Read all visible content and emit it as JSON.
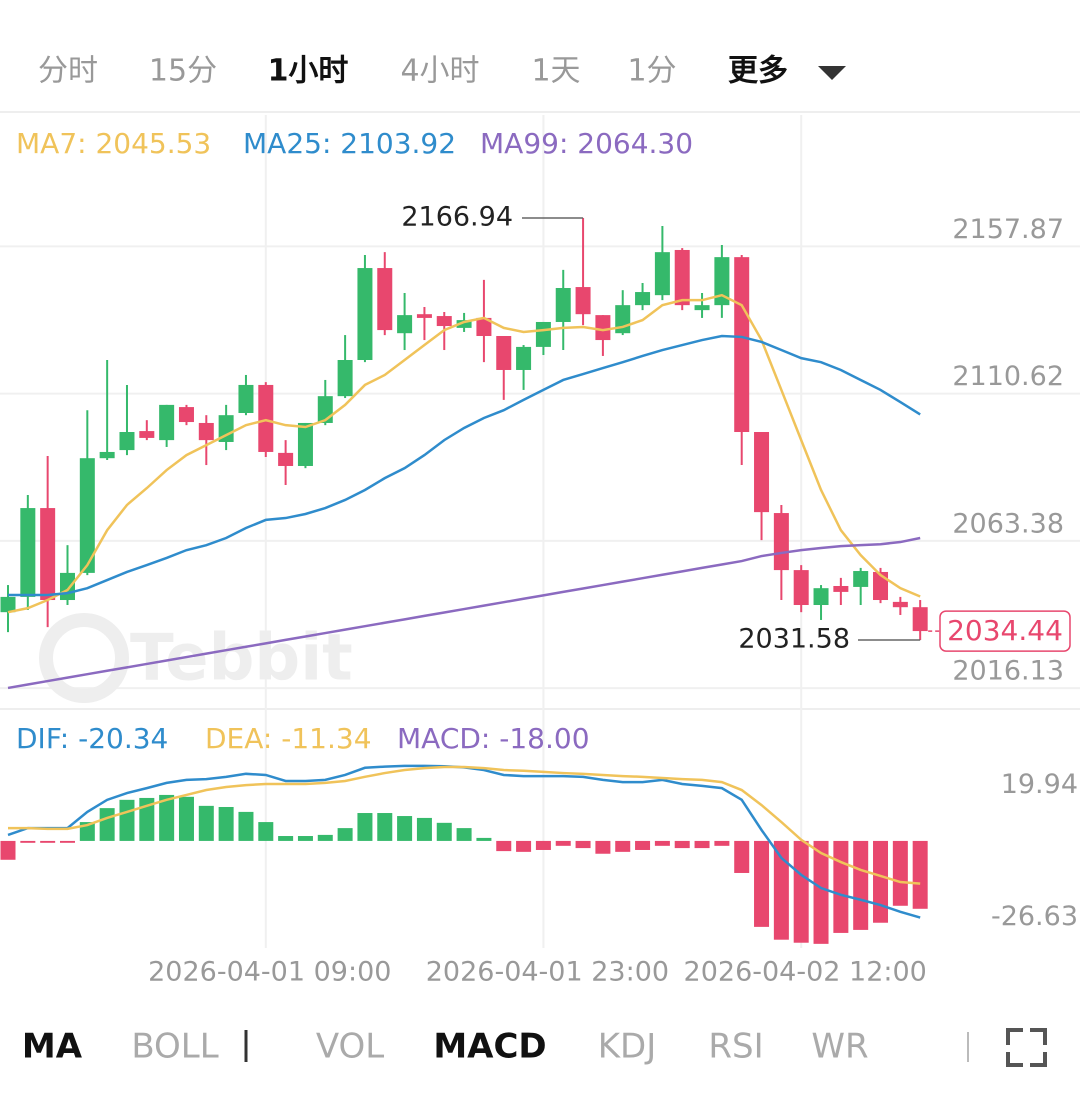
{
  "tabs": {
    "items": [
      "分时",
      "15分",
      "1小时",
      "4小时",
      "1天",
      "1分",
      "更多"
    ],
    "active": 2
  },
  "chart_data": [
    {
      "type": "candlestick",
      "watermark": "Tebbit",
      "categories": [
        null,
        null,
        null,
        null,
        null,
        null,
        null,
        null,
        null,
        null,
        null,
        null,
        null,
        "2026-04-01 09:00",
        null,
        null,
        null,
        null,
        null,
        null,
        null,
        null,
        null,
        null,
        null,
        null,
        null,
        "2026-04-01 23:00",
        null,
        null,
        null,
        null,
        null,
        null,
        null,
        null,
        null,
        null,
        null,
        null,
        "2026-04-02 12:00",
        null,
        null,
        null,
        null,
        null,
        null
      ],
      "open": [
        2040.5,
        2045.4,
        2073.9,
        2044.4,
        2053.1,
        2089.9,
        2092.5,
        2098.6,
        2095.7,
        2106.3,
        2101.2,
        2095.1,
        2104.4,
        2113.4,
        2091.6,
        2087.4,
        2101.2,
        2109.8,
        2121.4,
        2150.9,
        2130.0,
        2136.1,
        2135.5,
        2131.7,
        2134.9,
        2129.1,
        2118.2,
        2125.6,
        2133.6,
        2144.8,
        2135.8,
        2130.0,
        2139.0,
        2142.2,
        2156.7,
        2137.4,
        2139.0,
        2154.4,
        2098.3,
        2072.3,
        2054.0,
        2042.8,
        2048.9,
        2048.6,
        2053.4,
        2043.8,
        2042.1
      ],
      "high": [
        2049.2,
        2078.1,
        2090.6,
        2062.0,
        2105.3,
        2121.4,
        2113.4,
        2102.1,
        2107.0,
        2107.0,
        2103.7,
        2107.0,
        2116.6,
        2114.3,
        2095.7,
        2101.2,
        2115.0,
        2129.4,
        2155.1,
        2156.0,
        2142.9,
        2138.4,
        2136.8,
        2136.5,
        2147.1,
        2129.1,
        2126.2,
        2133.6,
        2150.3,
        2166.94,
        2135.8,
        2143.8,
        2146.1,
        2164.4,
        2157.3,
        2142.9,
        2158.3,
        2155.1,
        2098.3,
        2074.9,
        2055.6,
        2049.2,
        2051.5,
        2054.7,
        2054.7,
        2045.4,
        2044.4
      ],
      "low": [
        2034.1,
        2041.2,
        2035.7,
        2042.8,
        2052.4,
        2089.3,
        2090.9,
        2095.7,
        2093.5,
        2100.5,
        2087.7,
        2092.5,
        2103.7,
        2090.3,
        2081.3,
        2086.7,
        2100.5,
        2109.2,
        2120.7,
        2129.4,
        2124.6,
        2127.8,
        2124.6,
        2130.4,
        2120.7,
        2108.6,
        2111.8,
        2123.0,
        2124.6,
        2132.6,
        2122.7,
        2129.4,
        2137.4,
        2140.6,
        2137.4,
        2134.9,
        2134.9,
        2087.7,
        2063.6,
        2044.4,
        2040.5,
        2038.0,
        2042.8,
        2042.8,
        2043.4,
        2039.6,
        2031.58
      ],
      "close": [
        2045.4,
        2073.9,
        2044.4,
        2053.1,
        2089.9,
        2091.9,
        2098.3,
        2096.4,
        2107.0,
        2101.5,
        2095.7,
        2103.7,
        2113.4,
        2091.9,
        2087.4,
        2101.2,
        2109.8,
        2121.4,
        2150.9,
        2131.0,
        2135.8,
        2134.9,
        2132.3,
        2134.2,
        2129.1,
        2118.2,
        2125.6,
        2133.6,
        2144.5,
        2136.1,
        2127.8,
        2139.0,
        2143.2,
        2156.0,
        2139.0,
        2139.0,
        2154.4,
        2098.3,
        2072.6,
        2054.0,
        2042.8,
        2048.2,
        2047.0,
        2053.7,
        2044.4,
        2042.1,
        2034.44
      ],
      "up_color": "#35b96b",
      "down_color": "#e8476e",
      "series": [
        {
          "name": "MA7: 2045.53",
          "color": "#f0c35a",
          "values": [
            2040.5,
            2041.8,
            2044.4,
            2047.6,
            2055.6,
            2066.8,
            2074.9,
            2080.3,
            2086.1,
            2090.9,
            2094.1,
            2097.3,
            2100.5,
            2102.1,
            2100.5,
            2099.9,
            2102.1,
            2107.0,
            2113.4,
            2116.6,
            2121.4,
            2126.2,
            2131.0,
            2133.6,
            2134.9,
            2131.7,
            2130.4,
            2131.0,
            2131.7,
            2132.0,
            2131.0,
            2132.0,
            2134.2,
            2139.0,
            2140.6,
            2140.6,
            2142.2,
            2139.0,
            2127.8,
            2111.8,
            2095.7,
            2079.7,
            2066.8,
            2058.8,
            2052.4,
            2048.2,
            2045.53
          ]
        },
        {
          "name": "MA25: 2103.92",
          "color": "#2f8ccc",
          "values": [
            2046.0,
            2046.0,
            2046.0,
            2046.6,
            2048.2,
            2050.8,
            2053.4,
            2055.6,
            2057.9,
            2060.4,
            2062.0,
            2064.3,
            2067.5,
            2070.1,
            2070.7,
            2072.0,
            2073.9,
            2076.5,
            2079.7,
            2083.5,
            2086.7,
            2090.9,
            2095.7,
            2099.6,
            2102.8,
            2105.3,
            2108.6,
            2111.8,
            2115.0,
            2116.9,
            2118.8,
            2120.7,
            2122.7,
            2124.6,
            2126.2,
            2127.8,
            2129.1,
            2128.8,
            2127.2,
            2124.6,
            2122.0,
            2120.7,
            2118.2,
            2115.0,
            2111.8,
            2107.9,
            2103.92
          ]
        },
        {
          "name": "MA99: 2064.30",
          "color": "#8b6ac0",
          "values": [
            2016.2,
            2017.3,
            2018.4,
            2019.5,
            2020.6,
            2021.7,
            2022.8,
            2023.9,
            2025.0,
            2026.1,
            2027.2,
            2028.3,
            2029.4,
            2030.5,
            2031.6,
            2032.7,
            2033.8,
            2034.9,
            2036.0,
            2037.1,
            2038.2,
            2039.3,
            2040.4,
            2041.5,
            2042.6,
            2043.7,
            2044.8,
            2045.9,
            2047.0,
            2048.1,
            2049.2,
            2050.3,
            2051.4,
            2052.5,
            2053.6,
            2054.7,
            2055.8,
            2056.9,
            2058.5,
            2059.5,
            2060.4,
            2061.1,
            2061.7,
            2062.0,
            2062.3,
            2063.0,
            2064.3
          ]
        }
      ],
      "ylim": [
        2010.4,
        2200.0
      ],
      "yticks": [
        2016.13,
        2063.38,
        2110.62,
        2157.87
      ],
      "grid": true,
      "high_annotation": 2166.94,
      "low_annotation": 2031.58,
      "last_price": 2034.44
    },
    {
      "type": "macd",
      "series": [
        {
          "name": "DIF: -20.34",
          "color": "#2f8ccc",
          "values": [
            1.6,
            3.4,
            3.4,
            3.4,
            7.7,
            10.9,
            12.7,
            14.0,
            15.4,
            16.2,
            16.4,
            17.0,
            17.8,
            17.5,
            15.9,
            15.9,
            16.2,
            17.5,
            19.4,
            19.7,
            19.9,
            19.9,
            19.8,
            19.5,
            18.8,
            17.5,
            17.2,
            17.2,
            17.2,
            17.0,
            16.2,
            15.6,
            15.6,
            16.2,
            15.1,
            14.6,
            14.0,
            10.9,
            2.9,
            -4.5,
            -9.0,
            -12.5,
            -14.3,
            -15.6,
            -17.0,
            -18.8,
            -20.34
          ]
        },
        {
          "name": "DEA: -11.34",
          "color": "#f0c35a",
          "values": [
            3.4,
            3.4,
            3.2,
            3.2,
            4.2,
            6.1,
            7.7,
            9.3,
            10.9,
            12.2,
            13.5,
            14.3,
            14.8,
            15.1,
            15.1,
            15.1,
            15.4,
            15.9,
            17.0,
            18.0,
            18.8,
            19.3,
            19.6,
            19.6,
            19.3,
            18.8,
            18.6,
            18.3,
            18.0,
            17.8,
            17.5,
            17.2,
            17.0,
            16.7,
            16.4,
            16.2,
            15.6,
            13.5,
            9.5,
            5.0,
            0.3,
            -3.2,
            -5.6,
            -7.7,
            -9.3,
            -10.9,
            -11.34
          ]
        },
        {
          "name": "MACD: -18.00",
          "color": "#8b6ac0",
          "up_color": "#35b96b",
          "down_color": "#e8476e",
          "values": [
            -5.0,
            -0.5,
            -0.5,
            -0.5,
            5.0,
            8.7,
            10.9,
            11.4,
            12.2,
            11.7,
            9.3,
            9.0,
            7.7,
            5.0,
            1.3,
            1.3,
            1.6,
            3.4,
            7.4,
            7.4,
            6.6,
            6.1,
            4.8,
            3.4,
            0.8,
            -2.7,
            -2.9,
            -2.4,
            -1.3,
            -1.9,
            -3.4,
            -2.9,
            -2.4,
            -1.3,
            -1.9,
            -1.9,
            -1.3,
            -8.5,
            -22.8,
            -26.2,
            -27.0,
            -27.3,
            -24.4,
            -23.6,
            -21.7,
            -17.2,
            -18.0
          ]
        }
      ],
      "ylim": [
        -28.4,
        33.4
      ],
      "yticks": [
        19.94,
        -26.63
      ]
    }
  ],
  "indicator_bar": {
    "items": [
      "MA",
      "BOLL",
      "VOL",
      "MACD",
      "KDJ",
      "RSI",
      "WR"
    ],
    "active": [
      0,
      3
    ]
  }
}
